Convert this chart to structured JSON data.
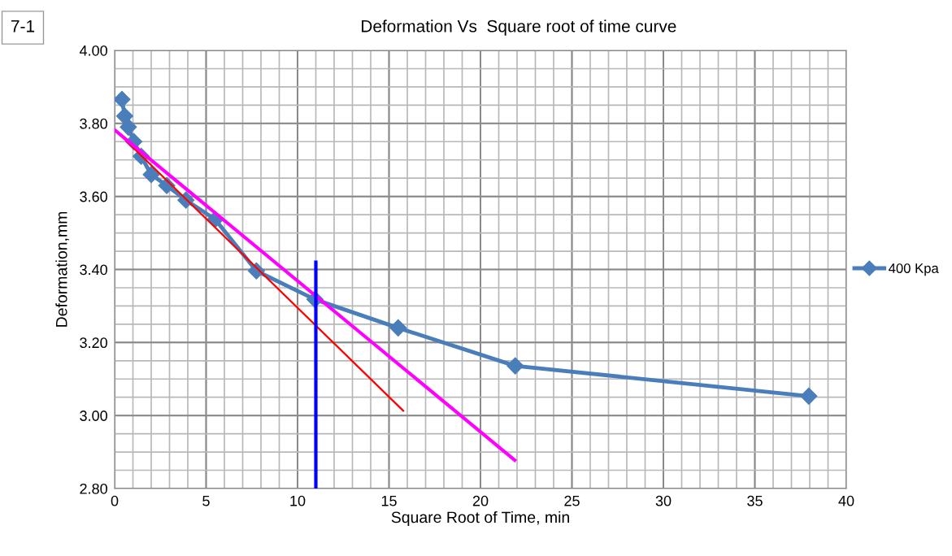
{
  "chart_data": {
    "type": "line",
    "title": "Deformation Vs  Square root of time curve",
    "xlabel": "Square Root of Time, min",
    "ylabel": "Deformation,mm",
    "annotations": [
      "7-1"
    ],
    "xlim": [
      0,
      40
    ],
    "xticks": [
      0,
      5,
      10,
      15,
      20,
      25,
      30,
      35,
      40
    ],
    "ylim": [
      2.8,
      4.0
    ],
    "yticks": [
      {
        "value": 2.8,
        "label": "2.80"
      },
      {
        "value": 3.0,
        "label": "3.00"
      },
      {
        "value": 3.2,
        "label": "3.20"
      },
      {
        "value": 3.4,
        "label": "3.40"
      },
      {
        "value": 3.6,
        "label": "3.60"
      },
      {
        "value": 3.8,
        "label": "3.80"
      },
      {
        "value": 4.0,
        "label": "4.00"
      }
    ],
    "grid": true,
    "legend": "right",
    "series": [
      {
        "name": "400 Kpa",
        "color": "#4a7ebb",
        "marker": "diamond",
        "x": [
          0.4,
          0.55,
          0.75,
          1.05,
          1.45,
          2.0,
          2.85,
          3.9,
          5.5,
          7.75,
          10.95,
          15.5,
          21.9,
          37.95
        ],
        "values": [
          3.866,
          3.82,
          3.79,
          3.75,
          3.71,
          3.66,
          3.63,
          3.59,
          3.537,
          3.396,
          3.318,
          3.24,
          3.136,
          3.053
        ]
      },
      {
        "color": "#ff0000",
        "marker": "none",
        "x": [
          0,
          15.78
        ],
        "values": [
          3.783,
          3.013
        ]
      },
      {
        "color": "#ff00ff",
        "marker": "none",
        "x": [
          0,
          21.87
        ],
        "values": [
          3.782,
          2.878
        ]
      },
      {
        "color": "#0000ff",
        "marker": "none",
        "x": [
          11.0,
          11.0
        ],
        "values": [
          2.8,
          3.42
        ]
      }
    ]
  }
}
